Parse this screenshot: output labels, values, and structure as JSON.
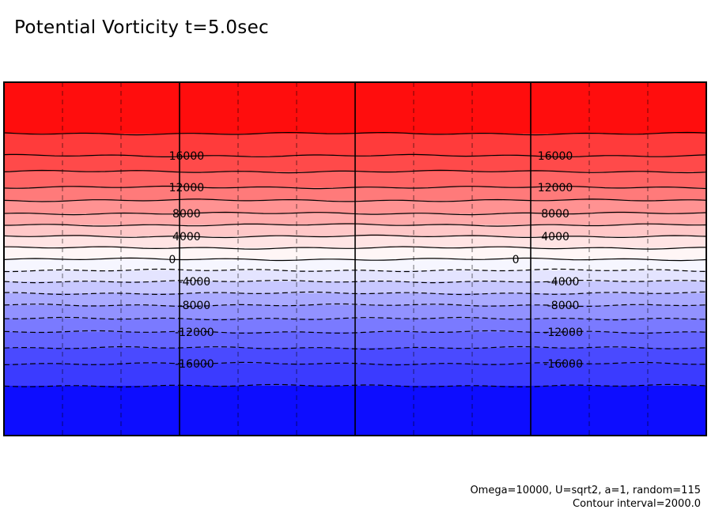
{
  "title": "Potential Vorticity t=5.0sec",
  "footer": {
    "params": "Omega=10000, U=sqrt2, a=1, random=115",
    "contour_interval": "Contour interval=2000.0"
  },
  "chart_data": {
    "type": "contour",
    "title": "Potential Vorticity t=5.0sec",
    "contour_interval": 2000,
    "value_range": [
      -20000,
      20000
    ],
    "contour_levels": [
      -18000,
      -16000,
      -14000,
      -12000,
      -10000,
      -8000,
      -6000,
      -4000,
      -2000,
      0,
      2000,
      4000,
      6000,
      8000,
      10000,
      12000,
      14000,
      16000,
      18000
    ],
    "labeled_levels": [
      16000,
      12000,
      8000,
      4000,
      0,
      -4000,
      -8000,
      -12000,
      -16000
    ],
    "negative_contours": "dashed",
    "positive_contours": "solid",
    "colors": {
      "max": "#ff0d0d",
      "zero": "#ffffff",
      "min": "#0d0dff"
    },
    "fill_bands": [
      {
        "from": 18000,
        "to": 20000,
        "color": "#ff0d0d"
      },
      {
        "from": 16000,
        "to": 18000,
        "color": "#ff3b3b"
      },
      {
        "from": 14000,
        "to": 16000,
        "color": "#ff4a4a"
      },
      {
        "from": 12000,
        "to": 14000,
        "color": "#ff6464"
      },
      {
        "from": 10000,
        "to": 12000,
        "color": "#ff7a7a"
      },
      {
        "from": 8000,
        "to": 10000,
        "color": "#ff9292"
      },
      {
        "from": 6000,
        "to": 8000,
        "color": "#ffaaaa"
      },
      {
        "from": 4000,
        "to": 6000,
        "color": "#ffc8c8"
      },
      {
        "from": 2000,
        "to": 4000,
        "color": "#ffe4e4"
      },
      {
        "from": 0,
        "to": 2000,
        "color": "#fff6f6"
      },
      {
        "from": -2000,
        "to": 0,
        "color": "#f6f6ff"
      },
      {
        "from": -4000,
        "to": -2000,
        "color": "#e4e4ff"
      },
      {
        "from": -6000,
        "to": -4000,
        "color": "#c8c8ff"
      },
      {
        "from": -8000,
        "to": -6000,
        "color": "#aaaaff"
      },
      {
        "from": -10000,
        "to": -8000,
        "color": "#9292ff"
      },
      {
        "from": -12000,
        "to": -10000,
        "color": "#7a7aff"
      },
      {
        "from": -14000,
        "to": -12000,
        "color": "#6464ff"
      },
      {
        "from": -16000,
        "to": -14000,
        "color": "#4a4aff"
      },
      {
        "from": -18000,
        "to": -16000,
        "color": "#3b3bff"
      },
      {
        "from": -20000,
        "to": -18000,
        "color": "#0d0dff"
      }
    ],
    "grid": true,
    "grid_style": "dashed",
    "major_divisions_x": 4,
    "minor_divisions_x": 12,
    "minor_divisions_y": 6
  }
}
